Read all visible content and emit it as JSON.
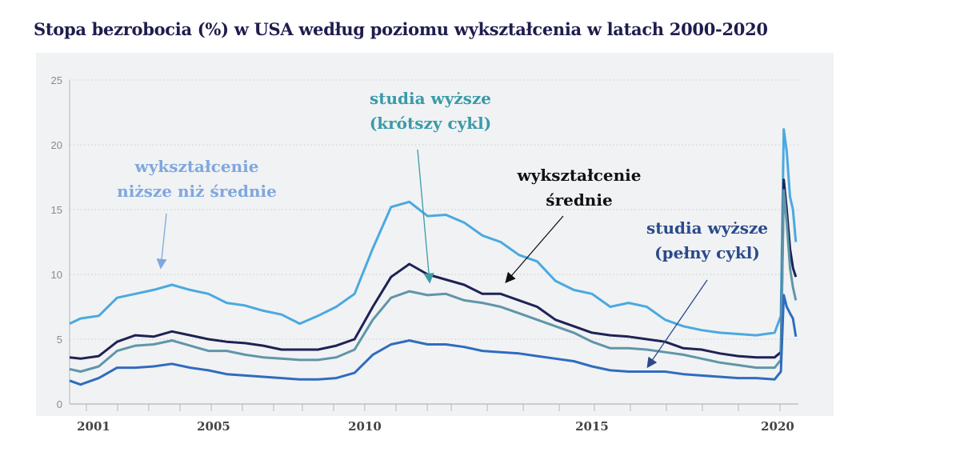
{
  "chart_data": {
    "type": "line",
    "title": "Stopa bezrobocia (%) w USA według poziomu wykształcenia w latach 2000-2020",
    "xlabel": "",
    "ylabel": "",
    "ylim": [
      0,
      25
    ],
    "yticks": [
      "0",
      "5",
      "10",
      "15",
      "20",
      "25"
    ],
    "xtick_labels": [
      "2001",
      "2005",
      "2010",
      "2015",
      "2020"
    ],
    "grid": "horizontal dotted",
    "x": [
      2000.7,
      2001.0,
      2001.5,
      2002.0,
      2002.5,
      2003.0,
      2003.5,
      2004.0,
      2004.5,
      2005.0,
      2005.5,
      2006.0,
      2006.5,
      2007.0,
      2007.5,
      2008.0,
      2008.5,
      2009.0,
      2009.5,
      2010.0,
      2010.5,
      2011.0,
      2011.5,
      2012.0,
      2012.5,
      2013.0,
      2013.5,
      2014.0,
      2014.5,
      2015.0,
      2015.5,
      2016.0,
      2016.5,
      2017.0,
      2017.5,
      2018.0,
      2018.5,
      2019.0,
      2019.5,
      2020.0,
      2020.17,
      2020.25,
      2020.33,
      2020.42,
      2020.5,
      2020.58
    ],
    "series": [
      {
        "name": "wykształcenie niższe niż średnie",
        "color": "#4aa9e0",
        "values": [
          6.2,
          6.6,
          6.8,
          8.2,
          8.5,
          8.8,
          9.2,
          8.8,
          8.5,
          7.8,
          7.6,
          7.2,
          6.9,
          6.2,
          6.8,
          7.5,
          8.5,
          12.0,
          15.2,
          15.6,
          14.5,
          14.6,
          14.0,
          13.0,
          12.5,
          11.5,
          11.0,
          9.5,
          8.8,
          8.5,
          7.5,
          7.8,
          7.5,
          6.5,
          6.0,
          5.7,
          5.5,
          5.4,
          5.3,
          5.5,
          6.8,
          21.2,
          19.5,
          16.0,
          15.0,
          12.5
        ]
      },
      {
        "name": "wykształcenie średnie",
        "color": "#1e2254",
        "values": [
          3.6,
          3.5,
          3.7,
          4.8,
          5.3,
          5.2,
          5.6,
          5.3,
          5.0,
          4.8,
          4.7,
          4.5,
          4.2,
          4.2,
          4.2,
          4.5,
          5.0,
          7.5,
          9.8,
          10.8,
          10.0,
          9.6,
          9.2,
          8.5,
          8.5,
          8.0,
          7.5,
          6.5,
          6.0,
          5.5,
          5.3,
          5.2,
          5.0,
          4.8,
          4.3,
          4.2,
          3.9,
          3.7,
          3.6,
          3.6,
          4.0,
          17.3,
          15.0,
          12.0,
          10.5,
          9.8
        ]
      },
      {
        "name": "studia wyższe (krótszy cykl)",
        "color": "#5f96a8",
        "values": [
          2.7,
          2.5,
          2.9,
          4.1,
          4.5,
          4.6,
          4.9,
          4.5,
          4.1,
          4.1,
          3.8,
          3.6,
          3.5,
          3.4,
          3.4,
          3.6,
          4.2,
          6.5,
          8.2,
          8.7,
          8.4,
          8.5,
          8.0,
          7.8,
          7.5,
          7.0,
          6.5,
          6.0,
          5.5,
          4.8,
          4.3,
          4.3,
          4.2,
          4.0,
          3.8,
          3.5,
          3.2,
          3.0,
          2.8,
          2.8,
          3.4,
          16.5,
          14.0,
          10.5,
          9.0,
          8.0
        ]
      },
      {
        "name": "studia wyższe (pełny cykl)",
        "color": "#2f6cbf",
        "values": [
          1.8,
          1.5,
          2.0,
          2.8,
          2.8,
          2.9,
          3.1,
          2.8,
          2.6,
          2.3,
          2.2,
          2.1,
          2.0,
          1.9,
          1.9,
          2.0,
          2.4,
          3.8,
          4.6,
          4.9,
          4.6,
          4.6,
          4.4,
          4.1,
          4.0,
          3.9,
          3.7,
          3.5,
          3.3,
          2.9,
          2.6,
          2.5,
          2.5,
          2.5,
          2.3,
          2.2,
          2.1,
          2.0,
          2.0,
          1.9,
          2.5,
          8.4,
          7.5,
          7.0,
          6.6,
          5.2
        ]
      }
    ],
    "annotations": [
      {
        "line1": "wykształcenie",
        "line2": "niższe niż średnie",
        "color": "#7fa8dc"
      },
      {
        "line1": "studia wyższe",
        "line2": "(krótszy cykl)",
        "color": "#3a9aa8"
      },
      {
        "line1": "wykształcenie",
        "line2": "średnie",
        "color": "#111111"
      },
      {
        "line1": "studia wyższe",
        "line2": "(pełny cykl)",
        "color": "#2a4a8a"
      }
    ]
  }
}
